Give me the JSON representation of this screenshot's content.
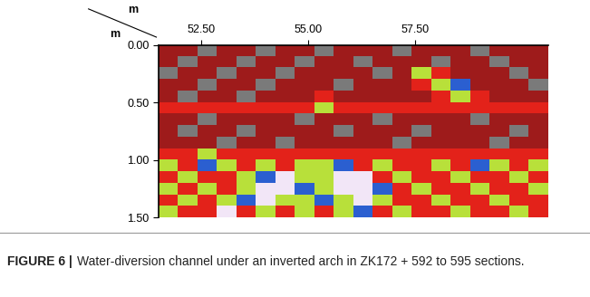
{
  "chart_data": {
    "type": "heatmap",
    "xlabel": "m",
    "ylabel": "m",
    "xlim": [
      51.5,
      60.6
    ],
    "ylim": [
      1.5,
      0.0
    ],
    "xticks": [
      {
        "value": 52.5,
        "label": "52.50"
      },
      {
        "value": 55.0,
        "label": "55.00"
      },
      {
        "value": 57.5,
        "label": "57.50"
      }
    ],
    "yticks": [
      {
        "value": 0.0,
        "label": "0.00"
      },
      {
        "value": 0.5,
        "label": "0.50"
      },
      {
        "value": 1.0,
        "label": "1.00"
      },
      {
        "value": 1.5,
        "label": "1.50"
      }
    ],
    "colors": [
      "#7a7a7a",
      "#9e1b1b",
      "#e3221a",
      "#b8e03a",
      "#2b5fd0",
      "#f2e6f7"
    ],
    "cells": [
      [
        1,
        1,
        0,
        1,
        1,
        0,
        1,
        1,
        0,
        1,
        1,
        1,
        0,
        1,
        1,
        1,
        0,
        1,
        1,
        1
      ],
      [
        1,
        0,
        1,
        1,
        0,
        1,
        1,
        0,
        1,
        1,
        0,
        1,
        1,
        1,
        0,
        1,
        1,
        0,
        1,
        1
      ],
      [
        0,
        1,
        1,
        0,
        1,
        1,
        0,
        1,
        1,
        1,
        1,
        0,
        1,
        3,
        2,
        1,
        1,
        1,
        0,
        1
      ],
      [
        1,
        1,
        0,
        1,
        1,
        0,
        1,
        1,
        1,
        0,
        1,
        1,
        1,
        2,
        3,
        4,
        1,
        1,
        1,
        0
      ],
      [
        1,
        0,
        1,
        1,
        0,
        1,
        1,
        1,
        2,
        1,
        1,
        1,
        1,
        1,
        2,
        3,
        2,
        1,
        1,
        1
      ],
      [
        2,
        2,
        2,
        2,
        2,
        2,
        2,
        2,
        3,
        2,
        2,
        2,
        2,
        2,
        2,
        2,
        2,
        2,
        2,
        2
      ],
      [
        1,
        1,
        0,
        1,
        1,
        1,
        1,
        0,
        1,
        1,
        1,
        0,
        1,
        1,
        1,
        1,
        0,
        1,
        1,
        1
      ],
      [
        1,
        0,
        1,
        1,
        0,
        1,
        1,
        1,
        1,
        0,
        1,
        1,
        1,
        0,
        1,
        1,
        1,
        1,
        0,
        1
      ],
      [
        1,
        1,
        1,
        0,
        1,
        1,
        0,
        1,
        1,
        1,
        1,
        1,
        0,
        1,
        1,
        1,
        1,
        0,
        1,
        1
      ],
      [
        2,
        2,
        3,
        2,
        2,
        2,
        2,
        2,
        2,
        2,
        2,
        2,
        2,
        2,
        2,
        2,
        2,
        2,
        2,
        2
      ],
      [
        3,
        2,
        4,
        3,
        2,
        3,
        2,
        3,
        3,
        4,
        2,
        3,
        2,
        2,
        3,
        2,
        4,
        3,
        2,
        3
      ],
      [
        2,
        3,
        2,
        2,
        3,
        4,
        5,
        3,
        3,
        5,
        5,
        2,
        3,
        2,
        2,
        3,
        2,
        2,
        3,
        2
      ],
      [
        3,
        2,
        3,
        2,
        3,
        5,
        5,
        4,
        3,
        5,
        5,
        4,
        2,
        3,
        2,
        2,
        3,
        2,
        2,
        3
      ],
      [
        2,
        3,
        2,
        3,
        4,
        5,
        3,
        3,
        4,
        3,
        5,
        3,
        2,
        2,
        3,
        2,
        2,
        3,
        2,
        2
      ],
      [
        3,
        2,
        2,
        5,
        2,
        3,
        2,
        3,
        2,
        3,
        4,
        2,
        3,
        2,
        2,
        3,
        2,
        2,
        3,
        2
      ]
    ]
  },
  "caption": {
    "label": "FIGURE 6 |",
    "text": "Water-diversion channel under an inverted arch in ZK172 + 592 to 595 sections."
  }
}
